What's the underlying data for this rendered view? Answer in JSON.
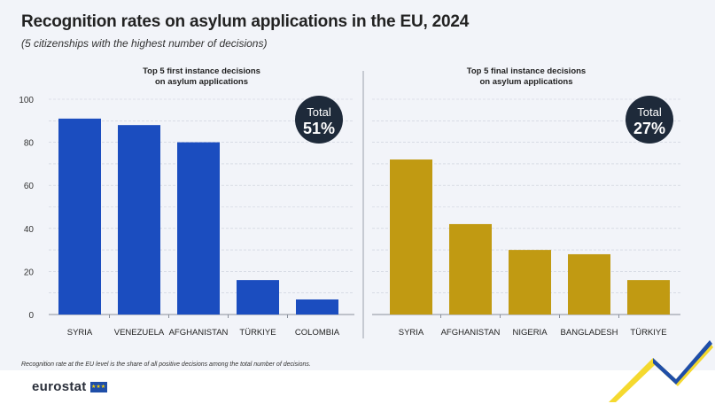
{
  "title": "Recognition rates on asylum applications in the EU, 2024",
  "subtitle": "(5 citizenships with the highest number of decisions)",
  "footnote": "Recognition rate at the EU level is the share of all positive decisions among the total number of decisions.",
  "logo": {
    "text": "eurostat"
  },
  "colors": {
    "first": "#1b4dbf",
    "final": "#c19a12",
    "badge": "#1e2a3a",
    "grid": "#c9ced9",
    "text": "#222222"
  },
  "chart_data": [
    {
      "type": "bar",
      "title": "Top 5 first instance decisions on asylum applications",
      "title_lines": [
        "Top 5 first instance decisions",
        "on asylum applications"
      ],
      "categories": [
        "SYRIA",
        "VENEZUELA",
        "AFGHANISTAN",
        "TÜRKIYE",
        "COLOMBIA"
      ],
      "values": [
        91,
        88,
        80,
        16,
        7
      ],
      "ylim": [
        0,
        100
      ],
      "yticks": [
        0,
        20,
        40,
        60,
        80,
        100
      ],
      "xlabel": "",
      "ylabel": "",
      "total_label": "Total",
      "total_value": "51%"
    },
    {
      "type": "bar",
      "title": "Top 5 final instance decisions on asylum applications",
      "title_lines": [
        "Top 5 final instance decisions",
        "on asylum applications"
      ],
      "categories": [
        "SYRIA",
        "AFGHANISTAN",
        "NIGERIA",
        "BANGLADESH",
        "TÜRKIYE"
      ],
      "values": [
        72,
        42,
        30,
        28,
        16
      ],
      "ylim": [
        0,
        100
      ],
      "xlabel": "",
      "ylabel": "",
      "total_label": "Total",
      "total_value": "27%"
    }
  ]
}
